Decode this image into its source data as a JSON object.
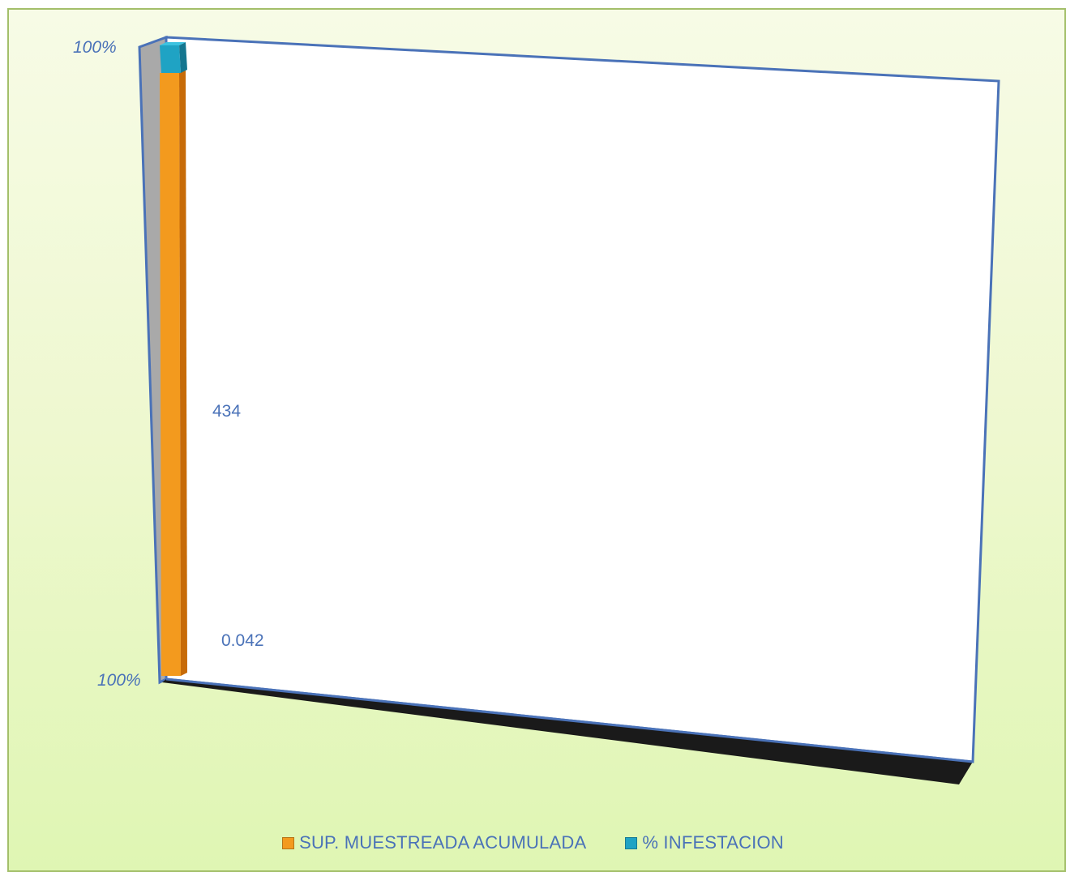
{
  "chart_data": {
    "type": "bar",
    "stacked": true,
    "percent_stacked": true,
    "three_d": true,
    "categories": [
      ""
    ],
    "series": [
      {
        "name": "SUP. MUESTREADA ACUMULADA",
        "values": [
          434
        ],
        "label": "434",
        "color": "#f39a1e"
      },
      {
        "name": "% INFESTACION",
        "values": [
          0.042
        ],
        "label": "0.042",
        "color": "#1fa3c4"
      }
    ],
    "y_ticks": [
      "100%",
      "100%"
    ],
    "legend_position": "bottom",
    "grid": false,
    "colors": {
      "background": "#e4f7bb",
      "frame_border": "#4a72b8",
      "floor": "#1a1a1a",
      "wall": "#ffffff",
      "side_wall": "#a9a9a9",
      "text": "#4a72b8"
    }
  }
}
